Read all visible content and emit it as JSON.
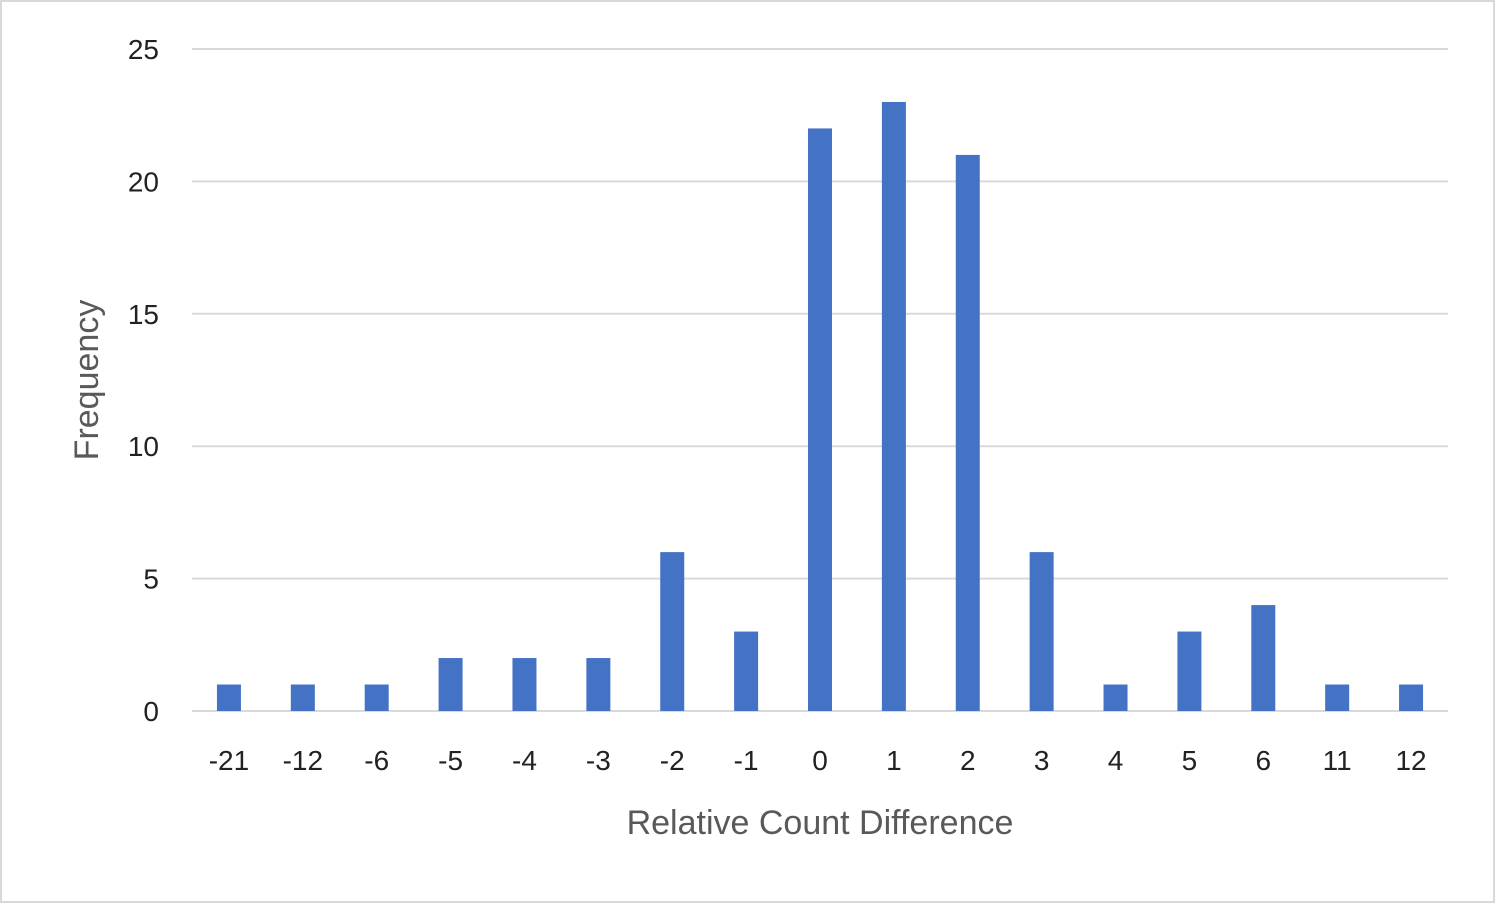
{
  "chart_data": {
    "type": "bar",
    "title": "",
    "xlabel": "Relative Count Difference",
    "ylabel": "Frequency",
    "categories": [
      "-21",
      "-12",
      "-6",
      "-5",
      "-4",
      "-3",
      "-2",
      "-1",
      "0",
      "1",
      "2",
      "3",
      "4",
      "5",
      "6",
      "11",
      "12"
    ],
    "values": [
      1,
      1,
      1,
      2,
      2,
      2,
      6,
      3,
      22,
      23,
      21,
      6,
      1,
      3,
      4,
      1,
      1
    ],
    "ylim": [
      0,
      25
    ],
    "yticks": [
      "0",
      "5",
      "10",
      "15",
      "20",
      "25"
    ],
    "grid": true,
    "legend": "none",
    "bar_color": "#4472c4",
    "grid_color": "#d9d9d9"
  }
}
